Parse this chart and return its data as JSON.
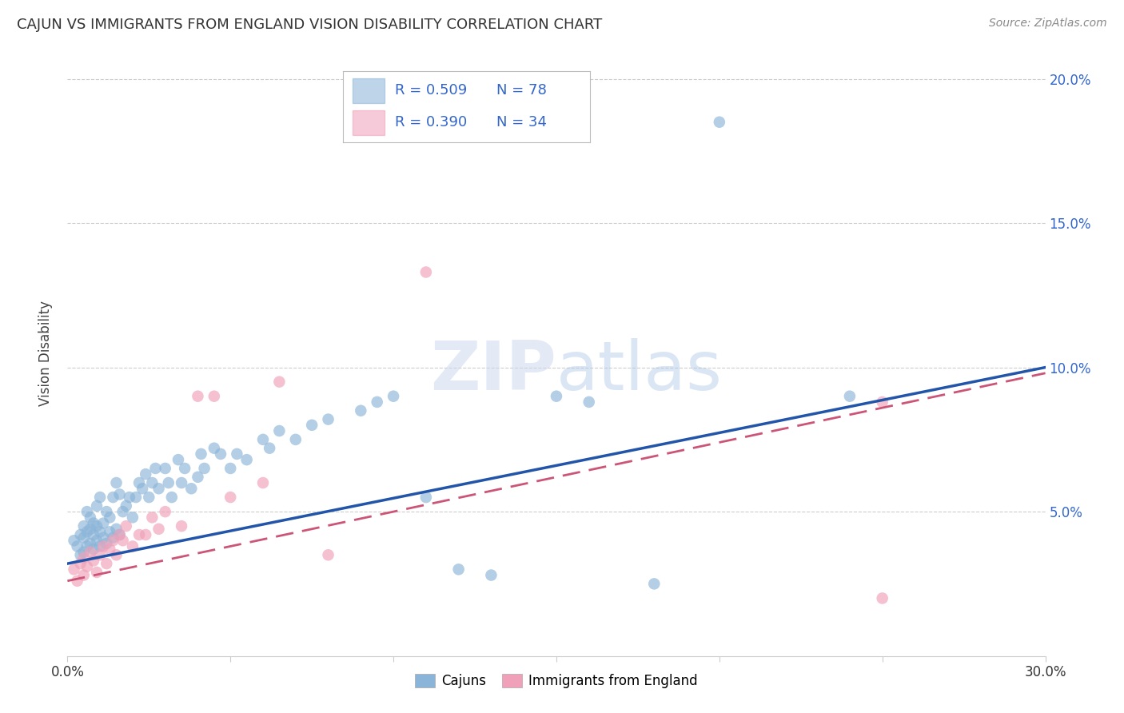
{
  "title": "CAJUN VS IMMIGRANTS FROM ENGLAND VISION DISABILITY CORRELATION CHART",
  "source": "Source: ZipAtlas.com",
  "ylabel": "Vision Disability",
  "xlim": [
    0.0,
    0.3
  ],
  "ylim": [
    0.0,
    0.21
  ],
  "x_ticks": [
    0.0,
    0.05,
    0.1,
    0.15,
    0.2,
    0.25,
    0.3
  ],
  "x_tick_labels": [
    "0.0%",
    "",
    "",
    "",
    "",
    "",
    "30.0%"
  ],
  "y_ticks": [
    0.05,
    0.1,
    0.15,
    0.2
  ],
  "y_tick_labels_right": [
    "5.0%",
    "10.0%",
    "15.0%",
    "20.0%"
  ],
  "cajun_R": 0.509,
  "cajun_N": 78,
  "england_R": 0.39,
  "england_N": 34,
  "cajun_color": "#8ab4d8",
  "england_color": "#f0a0b8",
  "cajun_line_color": "#2255aa",
  "england_line_color": "#cc5577",
  "legend_label_cajun": "Cajuns",
  "legend_label_england": "Immigrants from England",
  "background_color": "#ffffff",
  "grid_color": "#cccccc",
  "cajun_x": [
    0.002,
    0.003,
    0.004,
    0.004,
    0.005,
    0.005,
    0.005,
    0.006,
    0.006,
    0.006,
    0.007,
    0.007,
    0.007,
    0.008,
    0.008,
    0.008,
    0.009,
    0.009,
    0.009,
    0.01,
    0.01,
    0.01,
    0.011,
    0.011,
    0.012,
    0.012,
    0.013,
    0.013,
    0.014,
    0.014,
    0.015,
    0.015,
    0.016,
    0.016,
    0.017,
    0.018,
    0.019,
    0.02,
    0.021,
    0.022,
    0.023,
    0.024,
    0.025,
    0.026,
    0.027,
    0.028,
    0.03,
    0.031,
    0.032,
    0.034,
    0.035,
    0.036,
    0.038,
    0.04,
    0.041,
    0.042,
    0.045,
    0.047,
    0.05,
    0.052,
    0.055,
    0.06,
    0.062,
    0.065,
    0.07,
    0.075,
    0.08,
    0.09,
    0.095,
    0.1,
    0.11,
    0.12,
    0.13,
    0.15,
    0.16,
    0.18,
    0.2,
    0.24
  ],
  "cajun_y": [
    0.04,
    0.038,
    0.035,
    0.042,
    0.036,
    0.041,
    0.045,
    0.038,
    0.043,
    0.05,
    0.039,
    0.044,
    0.048,
    0.037,
    0.042,
    0.046,
    0.04,
    0.045,
    0.052,
    0.038,
    0.043,
    0.055,
    0.041,
    0.046,
    0.039,
    0.05,
    0.043,
    0.048,
    0.041,
    0.055,
    0.044,
    0.06,
    0.042,
    0.056,
    0.05,
    0.052,
    0.055,
    0.048,
    0.055,
    0.06,
    0.058,
    0.063,
    0.055,
    0.06,
    0.065,
    0.058,
    0.065,
    0.06,
    0.055,
    0.068,
    0.06,
    0.065,
    0.058,
    0.062,
    0.07,
    0.065,
    0.072,
    0.07,
    0.065,
    0.07,
    0.068,
    0.075,
    0.072,
    0.078,
    0.075,
    0.08,
    0.082,
    0.085,
    0.088,
    0.09,
    0.055,
    0.03,
    0.028,
    0.09,
    0.088,
    0.025,
    0.185,
    0.09
  ],
  "england_x": [
    0.002,
    0.003,
    0.004,
    0.005,
    0.005,
    0.006,
    0.007,
    0.008,
    0.009,
    0.01,
    0.011,
    0.012,
    0.013,
    0.014,
    0.015,
    0.016,
    0.017,
    0.018,
    0.02,
    0.022,
    0.024,
    0.026,
    0.028,
    0.03,
    0.035,
    0.04,
    0.045,
    0.05,
    0.06,
    0.065,
    0.08,
    0.11,
    0.25,
    0.25
  ],
  "england_y": [
    0.03,
    0.026,
    0.032,
    0.028,
    0.034,
    0.031,
    0.036,
    0.033,
    0.029,
    0.035,
    0.038,
    0.032,
    0.037,
    0.04,
    0.035,
    0.042,
    0.04,
    0.045,
    0.038,
    0.042,
    0.042,
    0.048,
    0.044,
    0.05,
    0.045,
    0.09,
    0.09,
    0.055,
    0.06,
    0.095,
    0.035,
    0.133,
    0.02,
    0.088
  ],
  "cajun_line_x": [
    0.0,
    0.3
  ],
  "cajun_line_y": [
    0.032,
    0.1
  ],
  "england_line_x": [
    0.0,
    0.3
  ],
  "england_line_y": [
    0.026,
    0.098
  ]
}
